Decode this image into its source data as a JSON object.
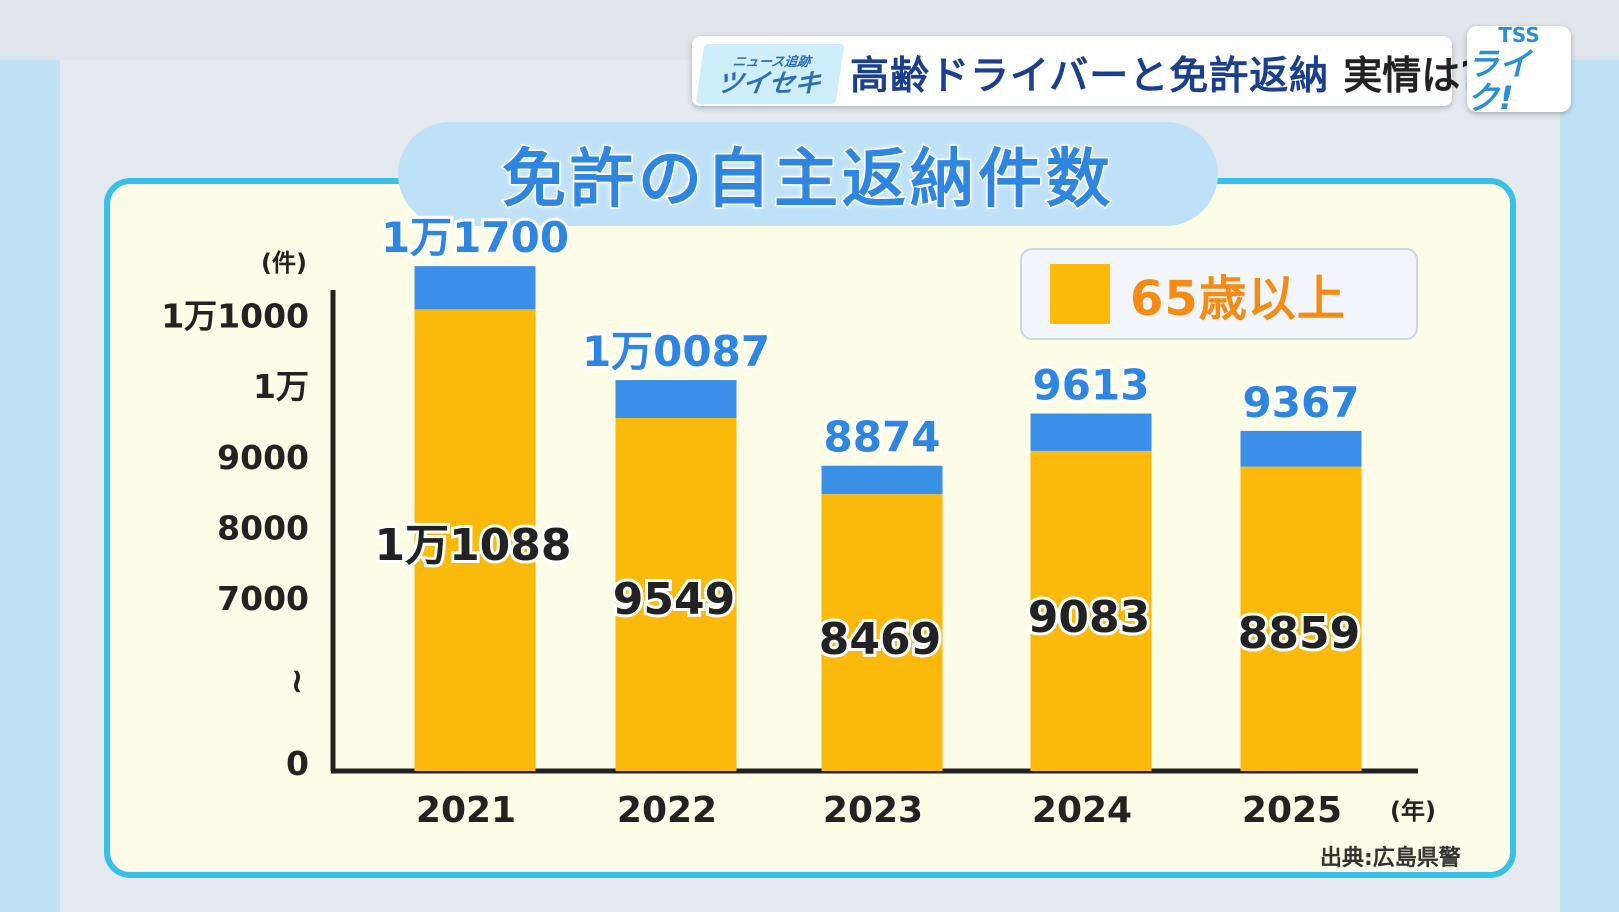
{
  "header": {
    "tag_small": "ニュース追跡",
    "tag_big": "ツイセキ",
    "title_main": "高齢ドライバーと免許返納",
    "title_sub": "実情は?"
  },
  "logo": {
    "line1": "TSS",
    "line2": "ライク!"
  },
  "source": "出典:広島県警",
  "colors": {
    "seniors": "#fbb90b",
    "others": "#3a8fe6",
    "panel_border": "#38c1e8",
    "total_label": "#2f86e0"
  },
  "chart_data": {
    "type": "bar",
    "stacked": true,
    "title": "免許の自主返納件数",
    "ylabel": "(件)",
    "xlabel": "(年)",
    "categories": [
      "2021",
      "2022",
      "2023",
      "2024",
      "2025"
    ],
    "series": [
      {
        "name": "65歳以上",
        "values": [
          11088,
          9549,
          8469,
          9083,
          8859
        ],
        "labels": [
          "1万1088",
          "9549",
          "8469",
          "9083",
          "8859"
        ]
      }
    ],
    "totals": [
      11700,
      10087,
      8874,
      9613,
      9367
    ],
    "total_labels": [
      "1万1700",
      "1万0087",
      "8874",
      "9613",
      "9367"
    ],
    "yticks": [
      {
        "value": 0,
        "label": "0"
      },
      {
        "value": 7000,
        "label": "7000"
      },
      {
        "value": 8000,
        "label": "8000"
      },
      {
        "value": 9000,
        "label": "9000"
      },
      {
        "value": 10000,
        "label": "1万"
      },
      {
        "value": 11000,
        "label": "1万1000"
      }
    ],
    "axis_break": true,
    "break_symbol": "≀",
    "legend": {
      "label": "65歳以上",
      "position": "top-right"
    }
  }
}
